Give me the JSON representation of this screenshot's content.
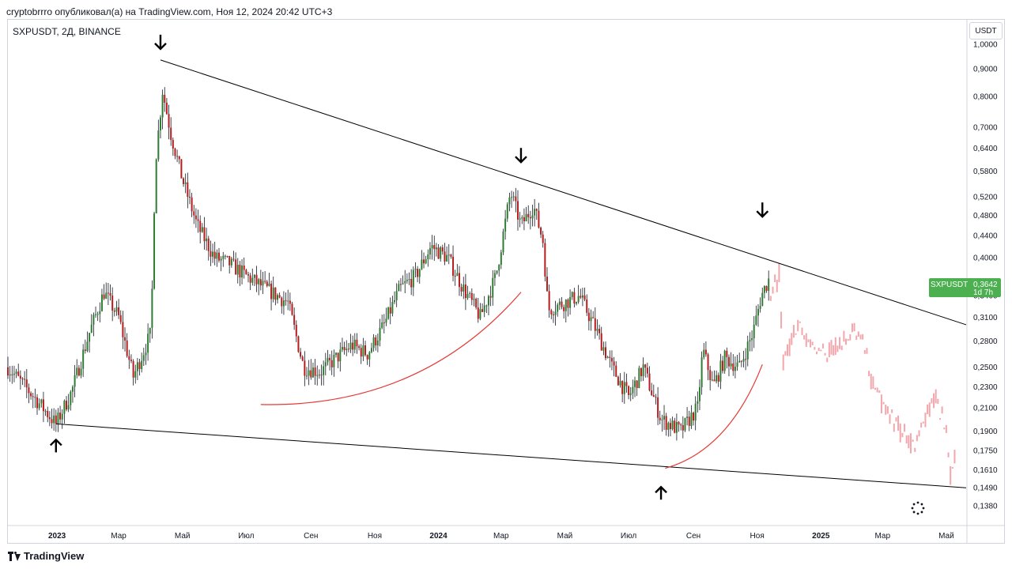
{
  "header": {
    "caption": "cryptobrrro опубликовал(а) на TradingView.com, Ноя 12, 2024 20:42 UTC+3"
  },
  "chart": {
    "symbol_title": "SXPUSDT, 2Д, BINANCE",
    "currency": "USDT"
  },
  "footer": {
    "brand": "TradingView",
    "logo_icon": "tradingview-logo-icon"
  },
  "colors": {
    "up": "#2e7d32",
    "down": "#b71c1c",
    "projection": "#f2a7ad",
    "trendline": "#000000",
    "curve": "#e53935",
    "badge": "#4caf50"
  },
  "chart_data": {
    "type": "candlestick",
    "scale": "log",
    "ylim": [
      0.128,
      1.1
    ],
    "xlim": [
      "2022-11-15",
      "2025-05-20"
    ],
    "price_ticks": [
      "1,0000",
      "0,9000",
      "0,8000",
      "0,7000",
      "0,6400",
      "0,5800",
      "0,5200",
      "0,4800",
      "0,4400",
      "0,4000",
      "0,3642",
      "0,3400",
      "0,3100",
      "0,2800",
      "0,2500",
      "0,2300",
      "0,2100",
      "0,1900",
      "0,1750",
      "0,1610",
      "0,1490",
      "0,1380"
    ],
    "time_ticks": [
      {
        "label": "2023",
        "date": "2023-01-01",
        "bold": true
      },
      {
        "label": "Мар",
        "date": "2023-03-01"
      },
      {
        "label": "Май",
        "date": "2023-05-01"
      },
      {
        "label": "Июл",
        "date": "2023-07-01"
      },
      {
        "label": "Сен",
        "date": "2023-09-01"
      },
      {
        "label": "Ноя",
        "date": "2023-11-01"
      },
      {
        "label": "2024",
        "date": "2024-01-01",
        "bold": true
      },
      {
        "label": "Мар",
        "date": "2024-03-01"
      },
      {
        "label": "Май",
        "date": "2024-05-01"
      },
      {
        "label": "Июл",
        "date": "2024-07-01"
      },
      {
        "label": "Сен",
        "date": "2024-09-01"
      },
      {
        "label": "Ноя",
        "date": "2024-11-01"
      },
      {
        "label": "2025",
        "date": "2025-01-01",
        "bold": true
      },
      {
        "label": "Мар",
        "date": "2025-03-01"
      },
      {
        "label": "Май",
        "date": "2025-05-01"
      }
    ],
    "last_price": {
      "symbol": "SXPUSDT",
      "value": "0,3642",
      "countdown": "1d 7h"
    },
    "price_path": [
      [
        "2022-11-15",
        0.25
      ],
      [
        "2022-12-10",
        0.22
      ],
      [
        "2022-12-31",
        0.196
      ],
      [
        "2023-01-15",
        0.225
      ],
      [
        "2023-02-01",
        0.29
      ],
      [
        "2023-02-15",
        0.345
      ],
      [
        "2023-03-01",
        0.31
      ],
      [
        "2023-03-15",
        0.24
      ],
      [
        "2023-04-01",
        0.29
      ],
      [
        "2023-04-05",
        0.6
      ],
      [
        "2023-04-12",
        0.82
      ],
      [
        "2023-04-20",
        0.68
      ],
      [
        "2023-05-01",
        0.56
      ],
      [
        "2023-05-15",
        0.46
      ],
      [
        "2023-06-01",
        0.4
      ],
      [
        "2023-06-15",
        0.39
      ],
      [
        "2023-07-01",
        0.37
      ],
      [
        "2023-07-20",
        0.35
      ],
      [
        "2023-08-10",
        0.33
      ],
      [
        "2023-08-25",
        0.25
      ],
      [
        "2023-09-10",
        0.245
      ],
      [
        "2023-09-25",
        0.26
      ],
      [
        "2023-10-10",
        0.275
      ],
      [
        "2023-10-25",
        0.265
      ],
      [
        "2023-11-10",
        0.3
      ],
      [
        "2023-11-25",
        0.35
      ],
      [
        "2023-12-10",
        0.37
      ],
      [
        "2023-12-25",
        0.42
      ],
      [
        "2024-01-10",
        0.4
      ],
      [
        "2024-01-25",
        0.35
      ],
      [
        "2024-02-10",
        0.31
      ],
      [
        "2024-02-25",
        0.37
      ],
      [
        "2024-03-10",
        0.53
      ],
      [
        "2024-03-20",
        0.46
      ],
      [
        "2024-04-01",
        0.5
      ],
      [
        "2024-04-10",
        0.43
      ],
      [
        "2024-04-15",
        0.32
      ],
      [
        "2024-05-01",
        0.33
      ],
      [
        "2024-05-15",
        0.34
      ],
      [
        "2024-06-01",
        0.29
      ],
      [
        "2024-06-15",
        0.25
      ],
      [
        "2024-07-01",
        0.22
      ],
      [
        "2024-07-15",
        0.25
      ],
      [
        "2024-08-01",
        0.2
      ],
      [
        "2024-08-20",
        0.19
      ],
      [
        "2024-09-05",
        0.21
      ],
      [
        "2024-09-10",
        0.27
      ],
      [
        "2024-09-20",
        0.23
      ],
      [
        "2024-10-01",
        0.26
      ],
      [
        "2024-10-15",
        0.25
      ],
      [
        "2024-10-28",
        0.29
      ],
      [
        "2024-11-05",
        0.34
      ],
      [
        "2024-11-12",
        0.3642
      ]
    ],
    "projection_path": [
      [
        "2024-11-14",
        0.35
      ],
      [
        "2024-11-22",
        0.37
      ],
      [
        "2024-11-26",
        0.26
      ],
      [
        "2024-12-10",
        0.3
      ],
      [
        "2024-12-20",
        0.28
      ],
      [
        "2025-01-05",
        0.265
      ],
      [
        "2025-01-20",
        0.275
      ],
      [
        "2025-02-01",
        0.29
      ],
      [
        "2025-02-10",
        0.28
      ],
      [
        "2025-02-20",
        0.23
      ],
      [
        "2025-03-05",
        0.21
      ],
      [
        "2025-03-20",
        0.19
      ],
      [
        "2025-04-01",
        0.18
      ],
      [
        "2025-04-10",
        0.2
      ],
      [
        "2025-04-20",
        0.22
      ],
      [
        "2025-05-01",
        0.19
      ],
      [
        "2025-05-05",
        0.16
      ],
      [
        "2025-05-10",
        0.175
      ]
    ],
    "trendlines": [
      {
        "name": "upper",
        "from": [
          "2023-04-10",
          0.935
        ],
        "to": [
          "2025-05-20",
          0.3
        ]
      },
      {
        "name": "lower",
        "from": [
          "2022-12-31",
          0.196
        ],
        "to": [
          "2025-05-20",
          0.149
        ]
      }
    ],
    "curves": [
      {
        "from": [
          "2023-07-15",
          0.213
        ],
        "ctrl": [
          "2023-12-15",
          0.21
        ],
        "to": [
          "2024-03-20",
          0.345
        ]
      },
      {
        "from": [
          "2024-08-05",
          0.162
        ],
        "ctrl": [
          "2024-10-05",
          0.175
        ],
        "to": [
          "2024-11-06",
          0.253
        ]
      }
    ],
    "arrows": [
      {
        "dir": "down",
        "date": "2023-04-10",
        "price": 0.935
      },
      {
        "dir": "down",
        "date": "2024-03-20",
        "price": 0.575
      },
      {
        "dir": "down",
        "date": "2024-11-06",
        "price": 0.455
      },
      {
        "dir": "up",
        "date": "2022-12-31",
        "price": 0.196
      },
      {
        "dir": "up",
        "date": "2024-08-01",
        "price": 0.16
      }
    ]
  }
}
